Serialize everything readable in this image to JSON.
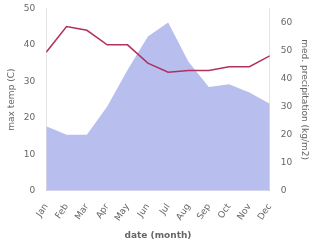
{
  "chart_data": {
    "type": "line",
    "categories": [
      "Jan",
      "Feb",
      "Mar",
      "Apr",
      "May",
      "Jun",
      "Jul",
      "Aug",
      "Sep",
      "Oct",
      "Nov",
      "Dec"
    ],
    "series": [
      {
        "type": "area",
        "axis": "y2",
        "color": "#b8bfee",
        "values": [
          23,
          20,
          20,
          30,
          43,
          55,
          60,
          46,
          37,
          38,
          35,
          31
        ]
      },
      {
        "type": "line",
        "color": "#b03060",
        "values": [
          38,
          45,
          44,
          40,
          40,
          35,
          32.5,
          33,
          33,
          34,
          34,
          37
        ]
      }
    ],
    "xlabel": "date (month)",
    "ylabel": "max temp (C)",
    "y2label": "med. precipitation (kg/m2)",
    "ylim": [
      0,
      50
    ],
    "yticks": [
      0,
      10,
      20,
      30,
      40,
      50
    ],
    "y2lim": [
      0,
      65
    ],
    "y2ticks": [
      0,
      10,
      20,
      30,
      40,
      50,
      60
    ],
    "grid": false
  }
}
